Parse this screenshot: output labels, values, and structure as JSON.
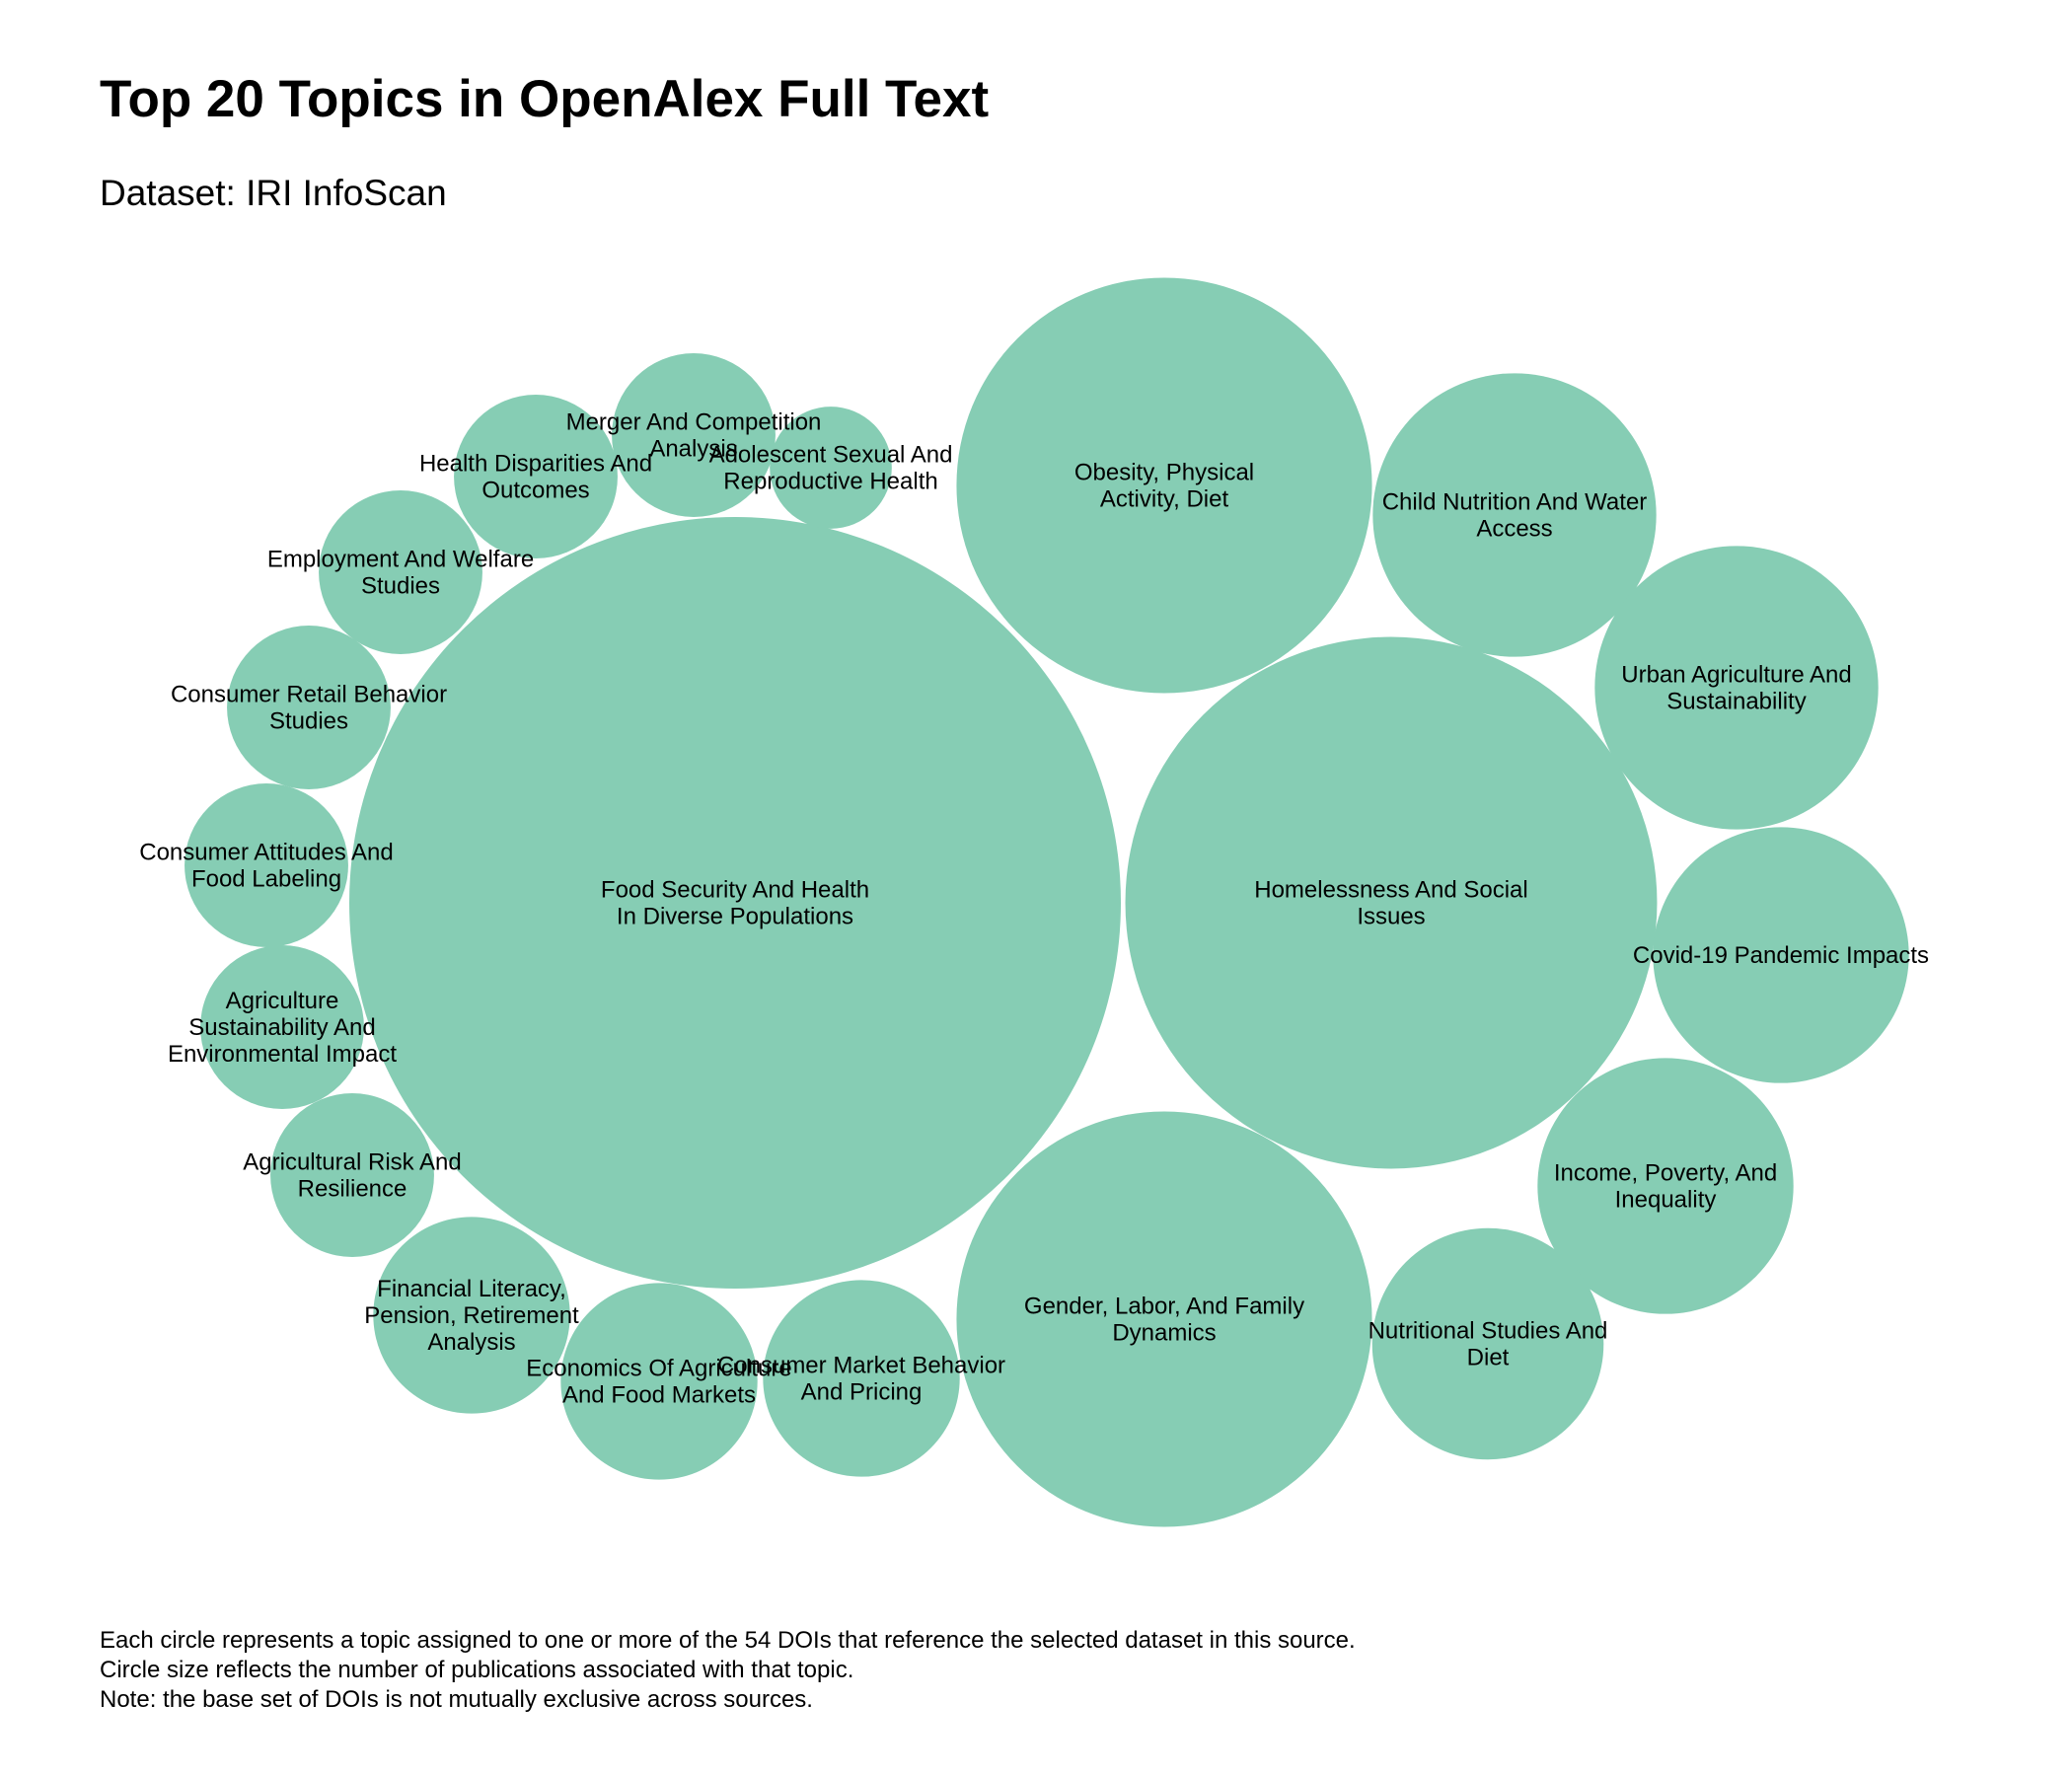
{
  "title": "Top 20 Topics in OpenAlex Full Text",
  "subtitle": "Dataset: IRI InfoScan",
  "colors": {
    "bubble": "#86cdb4",
    "text": "#000000",
    "background": "#ffffff"
  },
  "footnotes": [
    "Each circle represents a topic assigned to one or more of the 54 DOIs that reference the selected dataset in this source.",
    "Circle size reflects the number of publications associated with that topic.",
    "Note: the base set of DOIs is not mutually exclusive across sources."
  ],
  "chart_data": {
    "type": "bubble",
    "value_label": "number of publications",
    "items": [
      {
        "topic": "Food Security And Health In Diverse Populations",
        "lines": [
          "Food Security And Health",
          "In Diverse Populations"
        ],
        "value": 20
      },
      {
        "topic": "Homelessness And Social Issues",
        "lines": [
          "Homelessness And Social",
          "Issues"
        ],
        "value": 9.5
      },
      {
        "topic": "Obesity, Physical Activity, Diet",
        "lines": [
          "Obesity, Physical",
          "Activity, Diet"
        ],
        "value": 5.8
      },
      {
        "topic": "Gender, Labor, And Family Dynamics",
        "lines": [
          "Gender, Labor, And Family",
          "Dynamics"
        ],
        "value": 5.8
      },
      {
        "topic": "Child Nutrition And Water Access",
        "lines": [
          "Child Nutrition And Water",
          "Access"
        ],
        "value": 2.7
      },
      {
        "topic": "Urban Agriculture And Sustainability",
        "lines": [
          "Urban Agriculture And",
          "Sustainability"
        ],
        "value": 2.7
      },
      {
        "topic": "Covid-19 Pandemic Impacts",
        "lines": [
          "Covid-19 Pandemic Impacts"
        ],
        "value": 2.2
      },
      {
        "topic": "Income, Poverty, And Inequality",
        "lines": [
          "Income, Poverty, And",
          "Inequality"
        ],
        "value": 2.2
      },
      {
        "topic": "Nutritional Studies And Diet",
        "lines": [
          "Nutritional Studies And",
          "Diet"
        ],
        "value": 1.8
      },
      {
        "topic": "Financial Literacy, Pension, Retirement Analysis",
        "lines": [
          "Financial Literacy,",
          "Pension, Retirement",
          "Analysis"
        ],
        "value": 1.3
      },
      {
        "topic": "Economics Of Agriculture And Food Markets",
        "lines": [
          "Economics Of Agriculture",
          "And Food Markets"
        ],
        "value": 1.3
      },
      {
        "topic": "Consumer Market Behavior And Pricing",
        "lines": [
          "Consumer Market Behavior",
          "And Pricing"
        ],
        "value": 1.3
      },
      {
        "topic": "Health Disparities And Outcomes",
        "lines": [
          "Health Disparities And",
          "Outcomes"
        ],
        "value": 0.9
      },
      {
        "topic": "Merger And Competition Analysis",
        "lines": [
          "Merger And Competition",
          "Analysis"
        ],
        "value": 0.9
      },
      {
        "topic": "Employment And Welfare Studies",
        "lines": [
          "Employment And Welfare",
          "Studies"
        ],
        "value": 0.9
      },
      {
        "topic": "Consumer Retail Behavior Studies",
        "lines": [
          "Consumer Retail Behavior",
          "Studies"
        ],
        "value": 0.9
      },
      {
        "topic": "Consumer Attitudes And Food Labeling",
        "lines": [
          "Consumer Attitudes And",
          "Food Labeling"
        ],
        "value": 0.9
      },
      {
        "topic": "Agriculture Sustainability And Environmental Impact",
        "lines": [
          "Agriculture",
          "Sustainability And",
          "Environmental Impact"
        ],
        "value": 0.9
      },
      {
        "topic": "Agricultural Risk And Resilience",
        "lines": [
          "Agricultural Risk And",
          "Resilience"
        ],
        "value": 0.9
      },
      {
        "topic": "Adolescent Sexual And Reproductive Health",
        "lines": [
          "Adolescent Sexual And",
          "Reproductive Health"
        ],
        "value": 0.5
      }
    ]
  }
}
